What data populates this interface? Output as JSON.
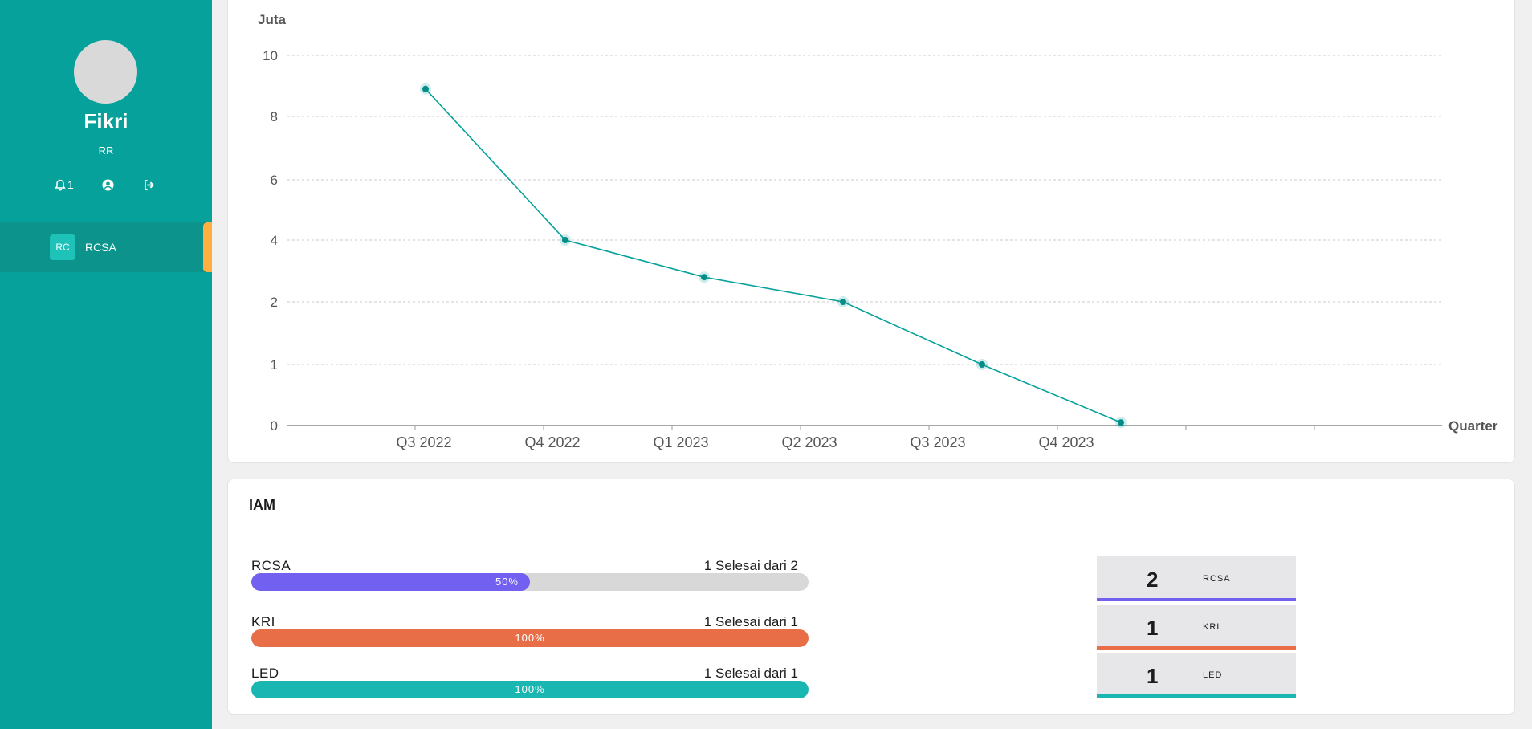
{
  "user": {
    "name": "Fikri",
    "role": "RR",
    "notification_count": "1"
  },
  "nav": {
    "items": [
      {
        "badge": "RC",
        "label": "RCSA"
      }
    ]
  },
  "colors": {
    "sidebar": "#06a19a",
    "line": "#06a19a",
    "active_marker": "#ffae42",
    "rcsa": "#7260f0",
    "kri": "#e86e48",
    "led": "#1ab7b2"
  },
  "chart_data": {
    "type": "line",
    "ylabel": "Juta",
    "xlabel": "Quarter",
    "y_ticks": [
      "10",
      "8",
      "6",
      "4",
      "2",
      "1",
      "0"
    ],
    "categories": [
      "Q3 2022",
      "Q4 2022",
      "Q1 2023",
      "Q2 2023",
      "Q3 2023",
      "Q4 2023"
    ],
    "values": [
      8.9,
      4.0,
      2.8,
      2.0,
      1.0,
      0.05
    ],
    "grid": true
  },
  "iam": {
    "title": "IAM",
    "bars": [
      {
        "name": "RCSA",
        "status": "1 Selesai dari 2",
        "percent_label": "50%",
        "percent": 50,
        "color": "#7260f0"
      },
      {
        "name": "KRI",
        "status": "1 Selesai dari 1",
        "percent_label": "100%",
        "percent": 100,
        "color": "#e86e48"
      },
      {
        "name": "LED",
        "status": "1 Selesai dari 1",
        "percent_label": "100%",
        "percent": 100,
        "color": "#1ab7b2"
      }
    ],
    "stats": [
      {
        "value": "2",
        "label": "RCSA",
        "color": "#7260f0"
      },
      {
        "value": "1",
        "label": "KRI",
        "color": "#e86e48"
      },
      {
        "value": "1",
        "label": "LED",
        "color": "#1ab7b2"
      }
    ]
  }
}
